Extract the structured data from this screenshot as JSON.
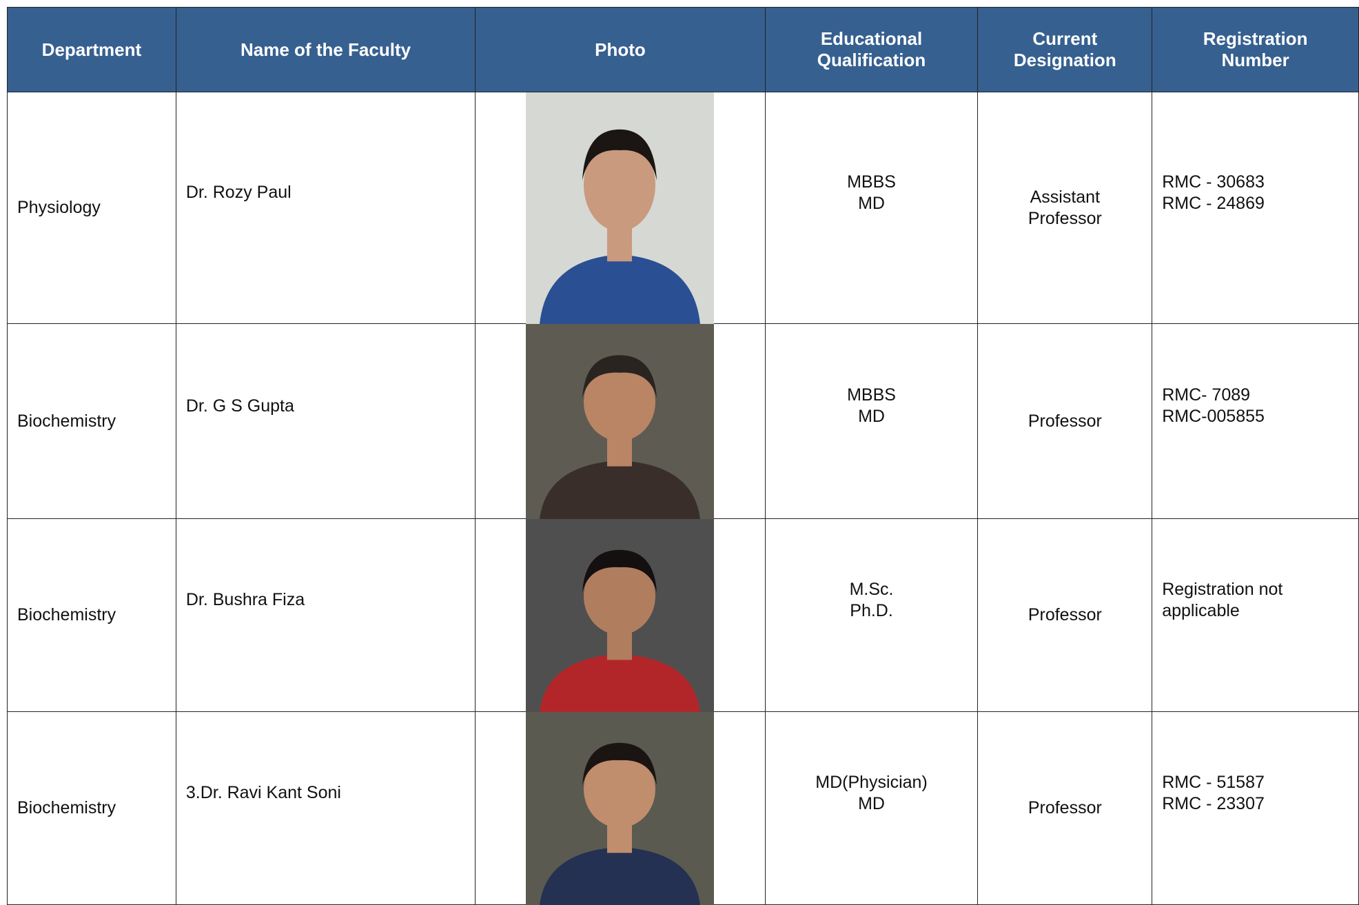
{
  "table": {
    "headers": [
      "Department",
      "Name of the Faculty",
      "Photo",
      [
        "Educational",
        "Qualification"
      ],
      [
        "Current",
        "Designation"
      ],
      [
        "Registration",
        "Number"
      ]
    ],
    "rows": [
      {
        "department": "Physiology",
        "name": "Dr. Rozy Paul",
        "qualification": [
          "MBBS",
          "MD"
        ],
        "designation": [
          "Assistant",
          "Professor"
        ],
        "registration": [
          "RMC - 30683",
          "RMC - 24869"
        ]
      },
      {
        "department": "Biochemistry",
        "name": "Dr. G S Gupta",
        "qualification": [
          "MBBS",
          "MD"
        ],
        "designation": [
          "Professor"
        ],
        "registration": [
          "RMC- 7089",
          "RMC-005855"
        ]
      },
      {
        "department": "Biochemistry",
        "name": "Dr. Bushra Fiza",
        "qualification": [
          "M.Sc.",
          "Ph.D."
        ],
        "designation": [
          "Professor"
        ],
        "registration": [
          "Registration not",
          "applicable"
        ]
      },
      {
        "department": "Biochemistry",
        "name": "3.Dr. Ravi Kant Soni",
        "qualification": [
          "MD(Physician)",
          "MD"
        ],
        "designation": [
          "Professor"
        ],
        "registration": [
          "RMC - 51587",
          "RMC - 23307"
        ]
      }
    ]
  }
}
